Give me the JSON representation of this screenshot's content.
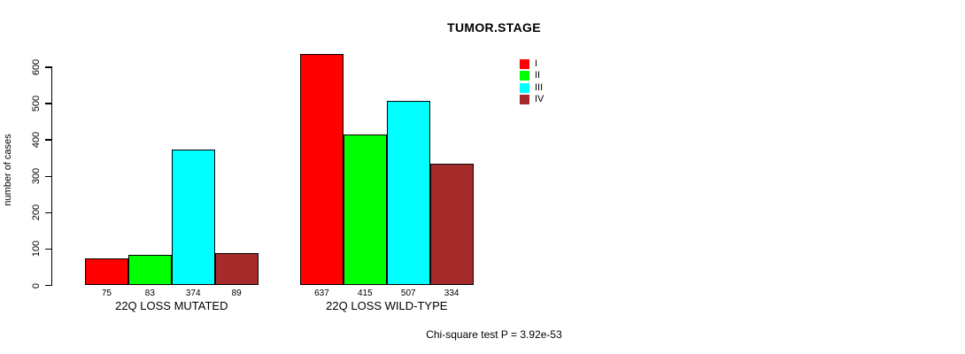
{
  "chart_data": {
    "type": "bar",
    "title": "TUMOR.STAGE",
    "xlabel": "",
    "ylabel": "number of cases",
    "ylim": [
      0,
      600
    ],
    "yticks": [
      0,
      100,
      200,
      300,
      400,
      500,
      600
    ],
    "grid": false,
    "legend_position": "top-right",
    "categories": [
      "22Q LOSS MUTATED",
      "22Q LOSS WILD-TYPE"
    ],
    "series": [
      {
        "name": "I",
        "color": "#FF0000",
        "values": [
          75,
          637
        ]
      },
      {
        "name": "II",
        "color": "#00FF00",
        "values": [
          83,
          415
        ]
      },
      {
        "name": "III",
        "color": "#00FFFF",
        "values": [
          374,
          507
        ]
      },
      {
        "name": "IV",
        "color": "#A52A2A",
        "values": [
          89,
          334
        ]
      }
    ],
    "bar_value_labels_shown": true,
    "annotation": "Chi-square test P = 3.92e-53"
  }
}
